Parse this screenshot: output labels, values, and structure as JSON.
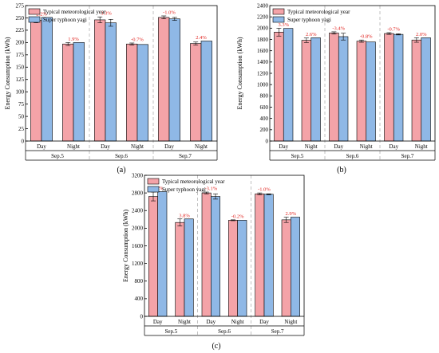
{
  "colors": {
    "typical": "#f4a3a8",
    "typhoon": "#8fb8e6",
    "pct": "#e0201c"
  },
  "legend": {
    "typical": "Typical meteorological year",
    "typhoon": "Super typhoon yagi"
  },
  "chart_data": [
    {
      "id": "a",
      "panel_label": "(a)",
      "type": "bar",
      "ylabel": "Energy Consumption (kWh)",
      "ylim": [
        0,
        275
      ],
      "yticks": [
        0,
        25,
        50,
        75,
        100,
        125,
        150,
        175,
        200,
        225,
        250,
        275
      ],
      "days": [
        "Sep.5",
        "Sep.6",
        "Sep.7"
      ],
      "periods": [
        "Day",
        "Night"
      ],
      "series": [
        {
          "name": "Typical meteorological year",
          "values": [
            245,
            197,
            246,
            197,
            251,
            198
          ],
          "errors": [
            5,
            3,
            6,
            2,
            3,
            3
          ]
        },
        {
          "name": "Super typhoon yagi",
          "values": [
            251,
            200,
            240,
            196,
            248,
            203
          ],
          "errors": [
            0,
            0,
            7,
            0,
            3,
            0
          ]
        }
      ],
      "pct_labels": [
        "2.2%",
        "1.9%",
        "-3.3%",
        "-0.7%",
        "-1.0%",
        "2.4%"
      ]
    },
    {
      "id": "b",
      "panel_label": "(b)",
      "type": "bar",
      "ylabel": "Energy Consumption (kWh)",
      "ylim": [
        0,
        2400
      ],
      "yticks": [
        0,
        200,
        400,
        600,
        800,
        1000,
        1200,
        1400,
        1600,
        1800,
        2000,
        2200,
        2400
      ],
      "days": [
        "Sep.5",
        "Sep.6",
        "Sep.7"
      ],
      "periods": [
        "Day",
        "Night"
      ],
      "series": [
        {
          "name": "Typical meteorological year",
          "values": [
            1930,
            1785,
            1915,
            1770,
            1905,
            1790
          ],
          "errors": [
            70,
            40,
            20,
            20,
            15,
            40
          ]
        },
        {
          "name": "Super typhoon yagi",
          "values": [
            1995,
            1830,
            1850,
            1755,
            1890,
            1830
          ],
          "errors": [
            0,
            0,
            60,
            0,
            10,
            0
          ]
        }
      ],
      "pct_labels": [
        "3.3%",
        "2.6%",
        "-3.4%",
        "-0.8%",
        "-0.7%",
        "2.0%"
      ]
    },
    {
      "id": "c",
      "panel_label": "(c)",
      "type": "bar",
      "ylabel": "Energy Consumption (kWh)",
      "ylim": [
        0,
        3200
      ],
      "yticks": [
        0,
        400,
        800,
        1200,
        1600,
        2000,
        2400,
        2800,
        3200
      ],
      "days": [
        "Sep.5",
        "Sep.6",
        "Sep.7"
      ],
      "periods": [
        "Day",
        "Night"
      ],
      "series": [
        {
          "name": "Typical meteorological year",
          "values": [
            2720,
            2130,
            2800,
            2180,
            2780,
            2190
          ],
          "errors": [
            100,
            80,
            20,
            10,
            20,
            60
          ]
        },
        {
          "name": "Super typhoon yagi",
          "values": [
            2830,
            2210,
            2720,
            2180,
            2770,
            2250
          ],
          "errors": [
            0,
            0,
            60,
            0,
            10,
            0
          ]
        }
      ],
      "pct_labels": [
        "4.2%",
        "3.8%",
        "-3.1%",
        "-0.2%",
        "-1.0%",
        "2.9%"
      ]
    }
  ]
}
